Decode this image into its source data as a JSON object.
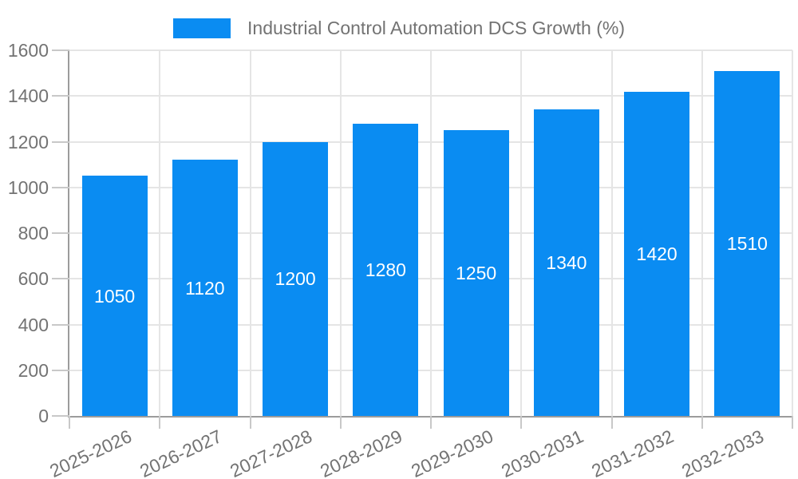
{
  "legend": {
    "items": [
      {
        "label": "Industrial Control Automation DCS Growth (%)",
        "color": "#0a8cf2"
      }
    ]
  },
  "chart_data": {
    "type": "bar",
    "title": "",
    "categories": [
      "2025-2026",
      "2026-2027",
      "2027-2028",
      "2028-2029",
      "2029-2030",
      "2030-2031",
      "2031-2032",
      "2032-2033"
    ],
    "series": [
      {
        "name": "Industrial Control Automation DCS Growth (%)",
        "color": "#0a8cf2",
        "values": [
          1050,
          1120,
          1200,
          1280,
          1250,
          1340,
          1420,
          1510
        ]
      }
    ],
    "bar_labels": [
      "1050",
      "1120",
      "1200",
      "1280",
      "1250",
      "1340",
      "1420",
      "1510"
    ],
    "bar_label_position": "inside-middle",
    "bar_label_color": "#ffffff",
    "ylim": [
      0,
      1600
    ],
    "ytick_step": 200,
    "ytick_labels": [
      "0",
      "200",
      "400",
      "600",
      "800",
      "1000",
      "1200",
      "1400",
      "1600"
    ],
    "x_label_rotation": -25,
    "grid": true,
    "legend_position": "top-center"
  },
  "colors": {
    "bar": "#0a8cf2",
    "grid": "#e5e5e5",
    "axis": "#9c9c9c",
    "tick": "#c8c8c8",
    "text": "#737373",
    "bar_label": "#ffffff",
    "background": "#ffffff"
  }
}
